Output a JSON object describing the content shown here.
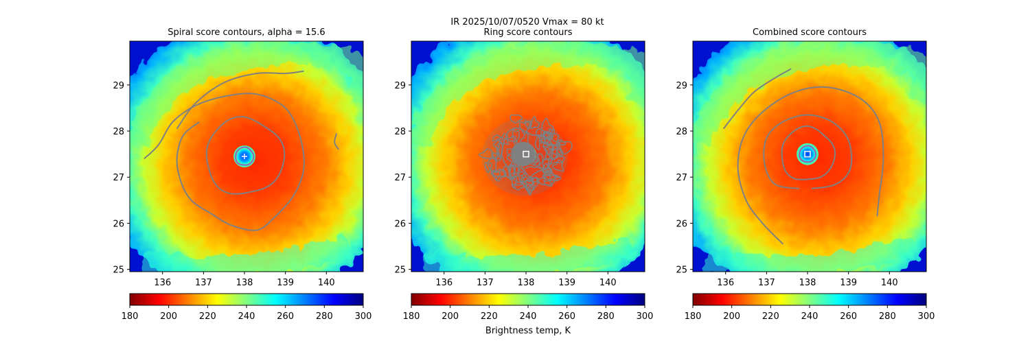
{
  "suptitle": "IR  2025/10/07/0520    Vmax = 80 kt",
  "colorbar_label": "Brightness temp, K",
  "colormap": [
    "#800000",
    "#ff0000",
    "#ff8000",
    "#ffff00",
    "#80ff80",
    "#00ffff",
    "#0080ff",
    "#0000ff",
    "#000080"
  ],
  "contour_color": "#808080",
  "chart_data": [
    {
      "type": "heatmap",
      "title": "Spiral score contours, alpha = 15.6",
      "xlim": [
        135.2,
        140.9
      ],
      "ylim": [
        24.95,
        29.95
      ],
      "x_ticks": [
        "136",
        "137",
        "138",
        "139",
        "140"
      ],
      "y_ticks": [
        "25",
        "26",
        "27",
        "28",
        "29"
      ],
      "center": [
        138.0,
        27.45
      ],
      "marker": "plus",
      "colorbar": {
        "min": 180,
        "max": 300,
        "ticks": [
          "180",
          "200",
          "220",
          "240",
          "260",
          "280",
          "300"
        ]
      }
    },
    {
      "type": "heatmap",
      "title": "Ring score contours",
      "xlim": [
        135.2,
        140.9
      ],
      "ylim": [
        24.95,
        29.95
      ],
      "x_ticks": [
        "136",
        "137",
        "138",
        "139",
        "140"
      ],
      "y_ticks": [
        "25",
        "26",
        "27",
        "28",
        "29"
      ],
      "center": [
        138.0,
        27.5
      ],
      "marker": "square",
      "colorbar": {
        "min": 180,
        "max": 300,
        "ticks": [
          "180",
          "200",
          "220",
          "240",
          "260",
          "280",
          "300"
        ]
      }
    },
    {
      "type": "heatmap",
      "title": "Combined score contours",
      "xlim": [
        135.2,
        140.9
      ],
      "ylim": [
        24.95,
        29.95
      ],
      "x_ticks": [
        "136",
        "137",
        "138",
        "139",
        "140"
      ],
      "y_ticks": [
        "25",
        "26",
        "27",
        "28",
        "29"
      ],
      "center": [
        138.0,
        27.5
      ],
      "marker": "square",
      "colorbar": {
        "min": 180,
        "max": 300,
        "ticks": [
          "180",
          "200",
          "220",
          "240",
          "260",
          "280",
          "300"
        ]
      }
    }
  ]
}
